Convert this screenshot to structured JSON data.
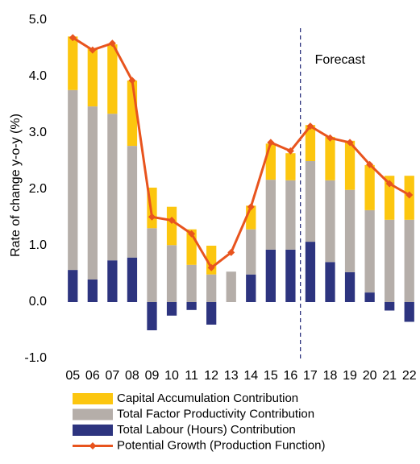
{
  "chart_data": {
    "type": "bar",
    "stacked": true,
    "y_label": "Rate of change y-o-y (%)",
    "annotation": "Forecast",
    "categories": [
      "05",
      "06",
      "07",
      "08",
      "09",
      "10",
      "11",
      "12",
      "13",
      "14",
      "15",
      "16",
      "17",
      "18",
      "19",
      "20",
      "21",
      "22"
    ],
    "series": [
      {
        "name": "Capital Accumulation Contribution",
        "type": "bar",
        "color": "#fcc60f",
        "values": [
          0.95,
          1.03,
          1.23,
          1.16,
          0.72,
          0.68,
          0.63,
          0.51,
          0,
          0.42,
          0.64,
          0.48,
          0.64,
          0.77,
          0.87,
          0.8,
          0.78,
          0.78
        ]
      },
      {
        "name": "Total Factor Productivity Contribution",
        "type": "bar",
        "color": "#b5aea9",
        "values": [
          3.19,
          3.07,
          2.6,
          1.98,
          1.31,
          1.01,
          0.66,
          0.49,
          0.54,
          0.8,
          1.24,
          1.23,
          1.43,
          1.45,
          1.46,
          1.46,
          1.46,
          1.46
        ]
      },
      {
        "name": "Total Labour (Hours) Contribution",
        "type": "bar",
        "color": "#2d347f",
        "values": [
          0.57,
          0.4,
          0.74,
          0.79,
          -0.5,
          -0.24,
          -0.14,
          -0.4,
          0,
          0.49,
          0.93,
          0.93,
          1.07,
          0.71,
          0.53,
          0.17,
          -0.15,
          -0.35
        ]
      },
      {
        "name": "Potential Growth (Production Function)",
        "type": "line",
        "color": "#e8541e",
        "values": [
          4.69,
          4.47,
          4.59,
          3.93,
          1.51,
          1.45,
          1.21,
          0.61,
          0.88,
          1.69,
          2.83,
          2.68,
          3.12,
          2.91,
          2.83,
          2.44,
          2.1,
          1.9
        ]
      }
    ],
    "ylim": [
      -1,
      5
    ],
    "yticks": [
      {
        "value": -1,
        "label": "-1.0"
      },
      {
        "value": 0,
        "label": "0.0"
      },
      {
        "value": 1,
        "label": "1.0"
      },
      {
        "value": 2,
        "label": "2.0"
      },
      {
        "value": 3,
        "label": "3.0"
      },
      {
        "value": 4,
        "label": "4.0"
      },
      {
        "value": 5,
        "label": "5.0"
      }
    ],
    "grid": false
  }
}
